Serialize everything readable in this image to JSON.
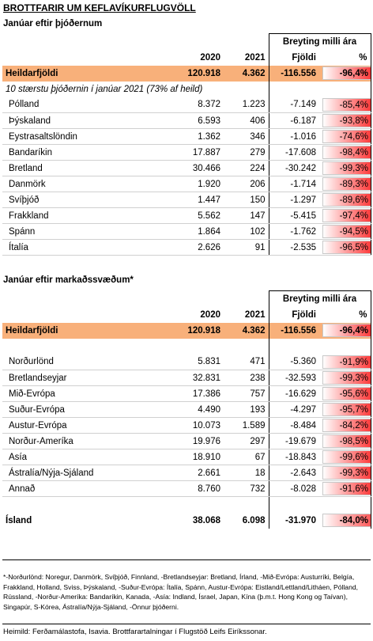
{
  "title": "BROTTFARIR UM KEFLAVÍKURFLUGVÖLL",
  "section1": {
    "subtitle": "Janúar eftir þjóðernum",
    "breyting_label": "Breyting milli ára",
    "col_2020": "2020",
    "col_2021": "2021",
    "col_fjoldi": "Fjöldi",
    "col_pct": "%",
    "total": {
      "label": "Heildarfjöldi",
      "v2020": "120.918",
      "v2021": "4.362",
      "diff": "-116.556",
      "pct": "-96,4%"
    },
    "note": "10 stærstu þjóðernin í janúar 2021 (73% af heild)",
    "rows": [
      {
        "label": "Pólland",
        "v2020": "8.372",
        "v2021": "1.223",
        "diff": "-7.149",
        "pct": "-85,4%"
      },
      {
        "label": "Þýskaland",
        "v2020": "6.593",
        "v2021": "406",
        "diff": "-6.187",
        "pct": "-93,8%"
      },
      {
        "label": "Eystrasaltslöndin",
        "v2020": "1.362",
        "v2021": "346",
        "diff": "-1.016",
        "pct": "-74,6%"
      },
      {
        "label": "Bandaríkin",
        "v2020": "17.887",
        "v2021": "279",
        "diff": "-17.608",
        "pct": "-98,4%"
      },
      {
        "label": "Bretland",
        "v2020": "30.466",
        "v2021": "224",
        "diff": "-30.242",
        "pct": "-99,3%"
      },
      {
        "label": "Danmörk",
        "v2020": "1.920",
        "v2021": "206",
        "diff": "-1.714",
        "pct": "-89,3%"
      },
      {
        "label": "Svíþjóð",
        "v2020": "1.447",
        "v2021": "150",
        "diff": "-1.297",
        "pct": "-89,6%"
      },
      {
        "label": "Frakkland",
        "v2020": "5.562",
        "v2021": "147",
        "diff": "-5.415",
        "pct": "-97,4%"
      },
      {
        "label": "Spánn",
        "v2020": "1.864",
        "v2021": "102",
        "diff": "-1.762",
        "pct": "-94,5%"
      },
      {
        "label": "Ítalía",
        "v2020": "2.626",
        "v2021": "91",
        "diff": "-2.535",
        "pct": "-96,5%"
      }
    ]
  },
  "section2": {
    "subtitle": "Janúar eftir markaðssvæðum*",
    "breyting_label": "Breyting milli ára",
    "col_2020": "2020",
    "col_2021": "2021",
    "col_fjoldi": "Fjöldi",
    "col_pct": "%",
    "total": {
      "label": "Heildarfjöldi",
      "v2020": "120.918",
      "v2021": "4.362",
      "diff": "-116.556",
      "pct": "-96,4%"
    },
    "rows": [
      {
        "label": "Norðurlönd",
        "v2020": "5.831",
        "v2021": "471",
        "diff": "-5.360",
        "pct": "-91,9%"
      },
      {
        "label": "Bretlandseyjar",
        "v2020": "32.831",
        "v2021": "238",
        "diff": "-32.593",
        "pct": "-99,3%"
      },
      {
        "label": "Mið-Evrópa",
        "v2020": "17.386",
        "v2021": "757",
        "diff": "-16.629",
        "pct": "-95,6%"
      },
      {
        "label": "Suður-Evrópa",
        "v2020": "4.490",
        "v2021": "193",
        "diff": "-4.297",
        "pct": "-95,7%"
      },
      {
        "label": "Austur-Evrópa",
        "v2020": "10.073",
        "v2021": "1.589",
        "diff": "-8.484",
        "pct": "-84,2%"
      },
      {
        "label": "Norður-Ameríka",
        "v2020": "19.976",
        "v2021": "297",
        "diff": "-19.679",
        "pct": "-98,5%"
      },
      {
        "label": "Asía",
        "v2020": "18.910",
        "v2021": "67",
        "diff": "-18.843",
        "pct": "-99,6%"
      },
      {
        "label": "Ástralía/Nýja-Sjáland",
        "v2020": "2.661",
        "v2021": "18",
        "diff": "-2.643",
        "pct": "-99,3%"
      },
      {
        "label": "Annað",
        "v2020": "8.760",
        "v2021": "732",
        "diff": "-8.028",
        "pct": "-91,6%"
      }
    ],
    "island": {
      "label": "Ísland",
      "v2020": "38.068",
      "v2021": "6.098",
      "diff": "-31.970",
      "pct": "-84,0%"
    }
  },
  "footnote": "*-Norðurlönd: Noregur, Danmörk, Svíþjóð, Finnland, -Bretlandseyjar: Bretland, Írland, -Mið-Evrópa: Austurríki, Belgía, Frakkland, Holland, Sviss, Þýskaland, -Suður-Evrópa: Ítalía, Spánn, Austur-Evrópa: Eistland/Lettland/Litháen, Pólland, Rússland, -Norður-Ameríka: Bandaríkin, Kanada, -Asía: Indland, Ísrael, Japan, Kína (þ.m.t. Hong Kong og Taívan), Singapúr, S-Kórea, Ástralía/Nýja-Sjáland, -Önnur þjóðerni.",
  "source": "Heimild: Ferðamálastofa, Isavia. Brottfarartalningar í Flugstöð Leifs Eiríkssonar.",
  "colors": {
    "highlight": "#f8b07a",
    "bar_red": "#ff3b3b"
  }
}
